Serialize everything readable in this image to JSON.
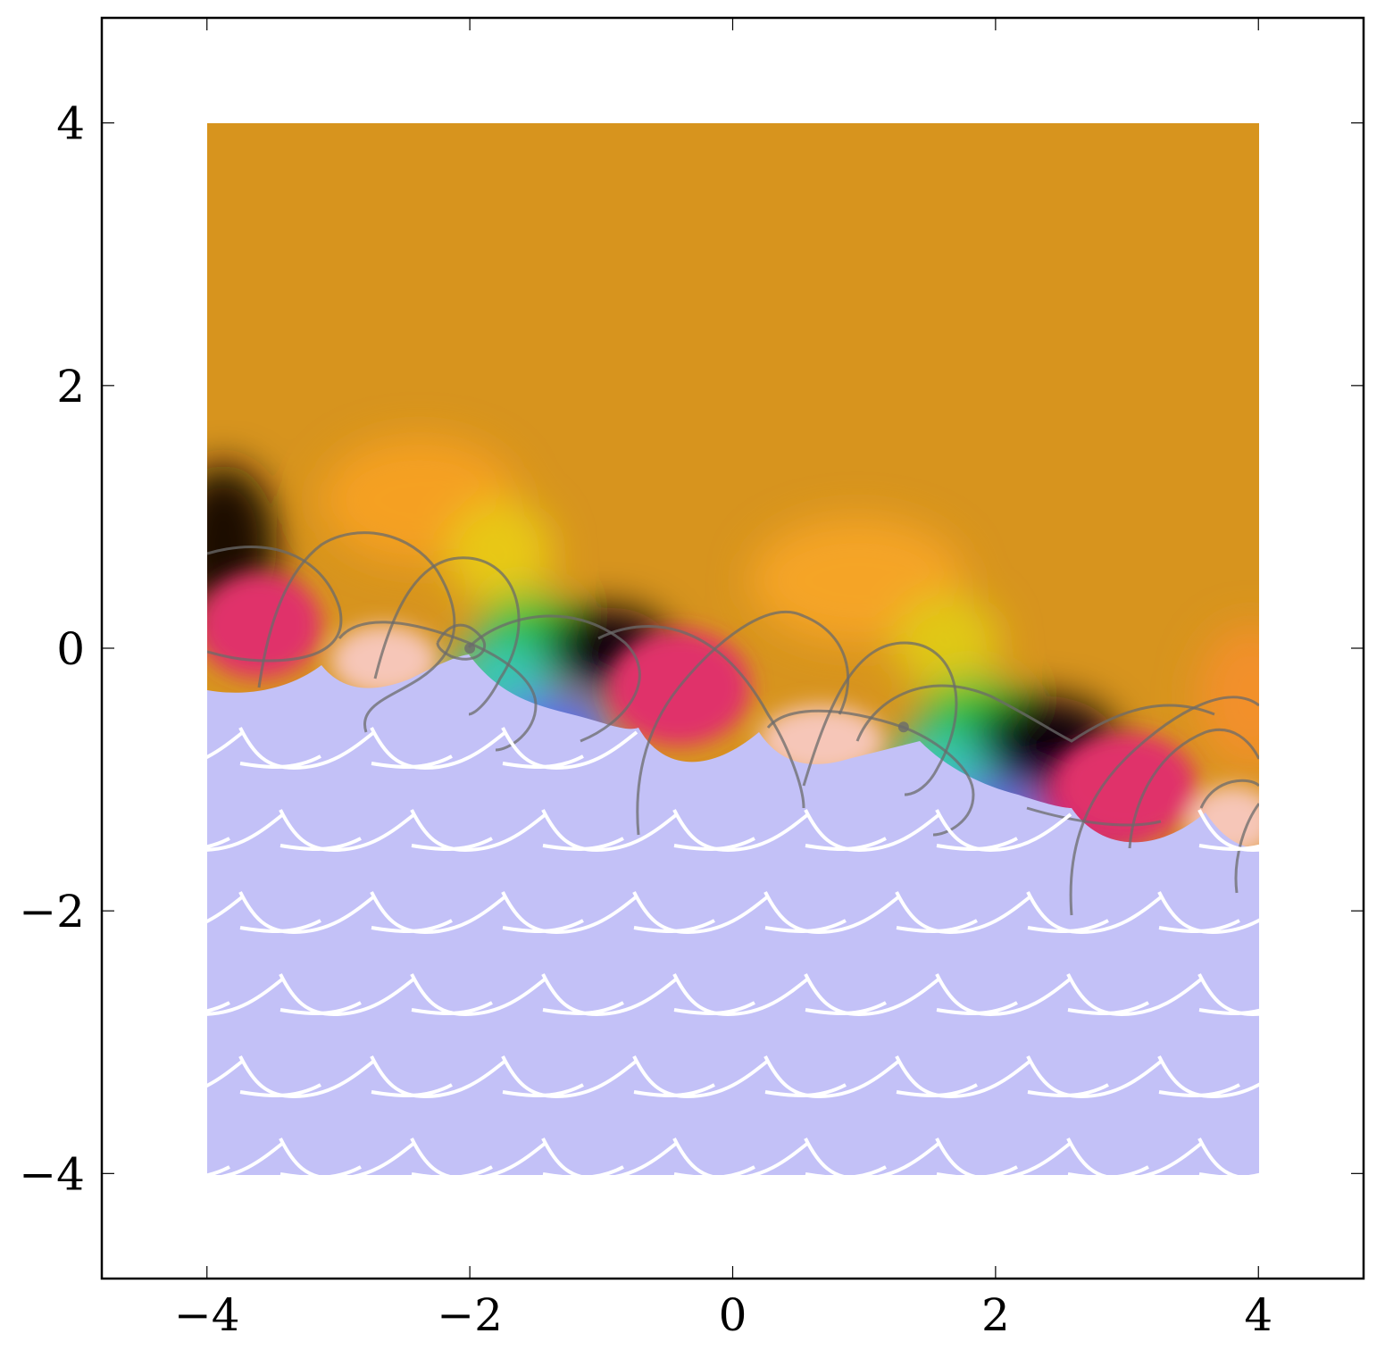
{
  "chart_data": {
    "type": "heatmap",
    "title": "",
    "xlabel": "",
    "ylabel": "",
    "xlim": [
      -4.8,
      4.8
    ],
    "ylim": [
      -4.8,
      4.8
    ],
    "image_extent": {
      "x": [
        -4,
        4
      ],
      "y": [
        -4,
        4
      ]
    },
    "x_ticks": [
      -4,
      -2,
      0,
      2,
      4
    ],
    "y_ticks": [
      -4,
      -2,
      0,
      2,
      4
    ],
    "x_tick_labels": [
      "−4",
      "−2",
      "0",
      "2",
      "4"
    ],
    "y_tick_labels": [
      "−4",
      "−2",
      "0",
      "2",
      "4"
    ],
    "grid": false,
    "zeros": [
      {
        "x": -2.0,
        "y": 0.0
      },
      {
        "x": 1.3,
        "y": -0.6
      }
    ],
    "colors": {
      "upper_region": "#d7941e",
      "lower_region": "#c3c1f7",
      "wave_lines": "#ffffff",
      "contour_lines": "#6b6b6b"
    }
  }
}
